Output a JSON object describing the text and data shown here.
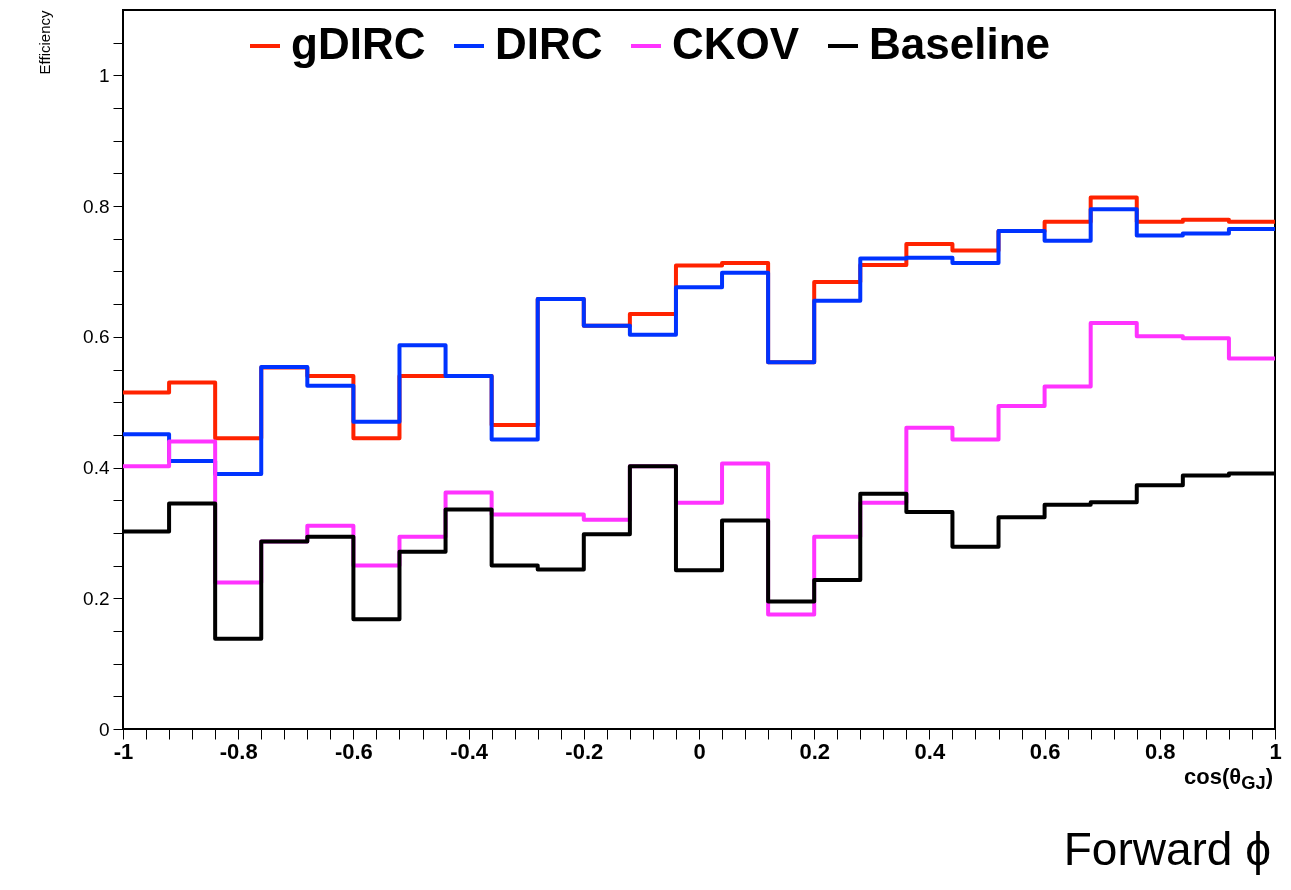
{
  "chart_data": {
    "type": "histogram",
    "xlabel": "cos(θ$_{GJ}$)",
    "ylabel": "Efficiency",
    "annotations": [
      "Forward ϕ"
    ],
    "bins": [
      -1,
      -0.92,
      -0.84,
      -0.76,
      -0.68,
      -0.6,
      -0.52,
      -0.44,
      -0.36,
      -0.28,
      -0.2,
      -0.12,
      -0.04,
      0.04,
      0.12,
      0.2,
      0.28,
      0.36,
      0.44,
      0.52,
      0.6,
      0.68,
      0.76,
      0.84,
      0.92,
      1
    ],
    "series": [
      {
        "name": "gDIRC",
        "color": "#ff2200",
        "values": [
          0.515,
          0.53,
          0.445,
          0.553,
          0.54,
          0.445,
          0.54,
          0.54,
          0.465,
          0.658,
          0.617,
          0.635,
          0.709,
          0.713,
          0.561,
          0.684,
          0.71,
          0.742,
          0.732,
          0.762,
          0.776,
          0.813,
          0.776,
          0.779,
          0.776
        ]
      },
      {
        "name": "DIRC",
        "color": "#0033ff",
        "values": [
          0.451,
          0.41,
          0.39,
          0.554,
          0.525,
          0.47,
          0.587,
          0.54,
          0.443,
          0.658,
          0.617,
          0.603,
          0.676,
          0.698,
          0.561,
          0.655,
          0.72,
          0.721,
          0.713,
          0.762,
          0.747,
          0.795,
          0.755,
          0.758,
          0.765
        ]
      },
      {
        "name": "CKOV",
        "color": "#ff33ff",
        "values": [
          0.402,
          0.44,
          0.224,
          0.287,
          0.311,
          0.25,
          0.294,
          0.362,
          0.328,
          0.328,
          0.32,
          0.402,
          0.346,
          0.406,
          0.175,
          0.294,
          0.346,
          0.461,
          0.443,
          0.494,
          0.524,
          0.621,
          0.601,
          0.598,
          0.567
        ]
      },
      {
        "name": "Baseline",
        "color": "#000000",
        "values": [
          0.302,
          0.345,
          0.138,
          0.287,
          0.294,
          0.168,
          0.271,
          0.336,
          0.25,
          0.244,
          0.298,
          0.402,
          0.243,
          0.319,
          0.195,
          0.228,
          0.36,
          0.332,
          0.279,
          0.324,
          0.343,
          0.347,
          0.373,
          0.388,
          0.391
        ]
      }
    ],
    "xlim": [
      -1,
      1
    ],
    "xticks": [
      -1,
      {
        "value": -0.96,
        "label": null
      },
      {
        "value": -0.92,
        "label": null
      },
      {
        "value": -0.88,
        "label": null
      },
      {
        "value": -0.84,
        "label": null
      },
      -0.8,
      {
        "value": -0.76,
        "label": null
      },
      {
        "value": -0.72,
        "label": null
      },
      {
        "value": -0.68,
        "label": null
      },
      {
        "value": -0.64,
        "label": null
      },
      -0.6,
      {
        "value": -0.56,
        "label": null
      },
      {
        "value": -0.52,
        "label": null
      },
      {
        "value": -0.48,
        "label": null
      },
      {
        "value": -0.44,
        "label": null
      },
      -0.4,
      {
        "value": -0.36,
        "label": null
      },
      {
        "value": -0.32,
        "label": null
      },
      {
        "value": -0.28,
        "label": null
      },
      {
        "value": -0.24,
        "label": null
      },
      -0.2,
      {
        "value": -0.16,
        "label": null
      },
      {
        "value": -0.12,
        "label": null
      },
      {
        "value": -0.08,
        "label": null
      },
      {
        "value": -0.04,
        "label": null
      },
      0,
      {
        "value": 0.04,
        "label": null
      },
      {
        "value": 0.08,
        "label": null
      },
      {
        "value": 0.12,
        "label": null
      },
      {
        "value": 0.16,
        "label": null
      },
      0.2,
      {
        "value": 0.24,
        "label": null
      },
      {
        "value": 0.28,
        "label": null
      },
      {
        "value": 0.32,
        "label": null
      },
      {
        "value": 0.36,
        "label": null
      },
      0.4,
      {
        "value": 0.44,
        "label": null
      },
      {
        "value": 0.48,
        "label": null
      },
      {
        "value": 0.52,
        "label": null
      },
      {
        "value": 0.56,
        "label": null
      },
      0.6,
      {
        "value": 0.64,
        "label": null
      },
      {
        "value": 0.68,
        "label": null
      },
      {
        "value": 0.72,
        "label": null
      },
      {
        "value": 0.76,
        "label": null
      },
      0.8,
      {
        "value": 0.84,
        "label": null
      },
      {
        "value": 0.88,
        "label": null
      },
      {
        "value": 0.92,
        "label": null
      },
      {
        "value": 0.96,
        "label": null
      },
      1
    ],
    "ylim": [
      0,
      1.1
    ],
    "yticks": [
      0,
      {
        "value": 0.05,
        "label": null
      },
      {
        "value": 0.1,
        "label": null
      },
      {
        "value": 0.15,
        "label": null
      },
      0.2,
      {
        "value": 0.25,
        "label": null
      },
      {
        "value": 0.3,
        "label": null
      },
      {
        "value": 0.35,
        "label": null
      },
      0.4,
      {
        "value": 0.45,
        "label": null
      },
      {
        "value": 0.5,
        "label": null
      },
      {
        "value": 0.55,
        "label": null
      },
      0.6,
      {
        "value": 0.65,
        "label": null
      },
      {
        "value": 0.7,
        "label": null
      },
      {
        "value": 0.75,
        "label": null
      },
      0.8,
      {
        "value": 0.85,
        "label": null
      },
      {
        "value": 0.9,
        "label": null
      },
      {
        "value": 0.95,
        "label": null
      },
      1,
      {
        "value": 1.05,
        "label": null
      }
    ],
    "grid": false,
    "legend": "top"
  }
}
